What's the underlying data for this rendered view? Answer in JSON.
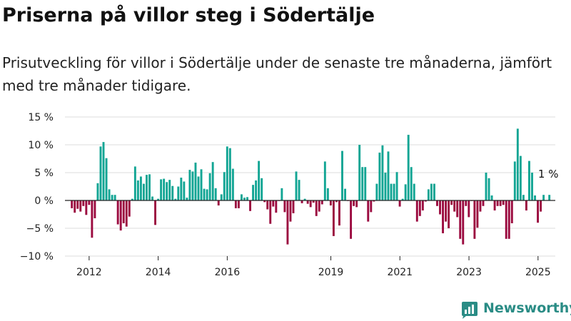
{
  "title": "Priserna på villor steg i Södertälje",
  "subtitle": "Prisutveckling för villor i Södertälje under de senaste tre månaderna, jämfört med tre månader tidigare.",
  "colors": {
    "positive": "#12a594",
    "negative": "#9b0a3f",
    "grid": "#dddddd",
    "axis": "#222222",
    "brand": "#2a8c85"
  },
  "brand": {
    "name": "Newsworthy",
    "icon": "newsworthy-logo-icon"
  },
  "chart_data": {
    "type": "bar",
    "title": "Priserna på villor steg i Södertälje",
    "xlabel": "",
    "ylabel": "",
    "ylim": [
      -10,
      15
    ],
    "yticks": [
      15,
      10,
      5,
      0,
      -5,
      -10
    ],
    "ytick_labels": [
      "15 %",
      "10 %",
      "5 %",
      "0 %",
      "−5 %",
      "−10 %"
    ],
    "xlim": [
      2011.3,
      2025.5
    ],
    "xticks": [
      2012,
      2014,
      2016,
      2019,
      2021,
      2023,
      2025
    ],
    "xtick_labels": [
      "2012",
      "2014",
      "2016",
      "2019",
      "2021",
      "2023",
      "2025"
    ],
    "grid": true,
    "legend": "none",
    "annotation": {
      "label": "1 %",
      "x": 2025.25,
      "y": 1
    },
    "start_year": 2011.5,
    "period_step": 0.0833,
    "values": [
      -1.4,
      -2.2,
      -1.5,
      -2.0,
      -1.0,
      -2.6,
      -0.8,
      -6.7,
      -3.2,
      3.1,
      9.7,
      10.5,
      7.6,
      2.0,
      1.0,
      1.0,
      -4.3,
      -5.4,
      -4.1,
      -4.7,
      -2.9,
      0.3,
      6.1,
      3.6,
      4.3,
      3.0,
      4.6,
      4.7,
      0.7,
      -4.4,
      0.3,
      3.8,
      3.9,
      3.3,
      3.7,
      2.6,
      0.3,
      2.5,
      4.1,
      3.4,
      0.5,
      5.5,
      5.2,
      6.8,
      4.3,
      5.6,
      2.1,
      2.0,
      4.9,
      6.9,
      2.2,
      -0.9,
      1.1,
      5.1,
      9.7,
      9.4,
      5.7,
      -1.4,
      -1.4,
      1.1,
      0.5,
      0.6,
      -1.9,
      2.8,
      3.6,
      7.1,
      4.0,
      -0.3,
      -1.6,
      -4.2,
      -1.1,
      -2.2,
      -0.1,
      2.2,
      -2.1,
      -7.9,
      -3.8,
      -2.3,
      5.2,
      3.7,
      -0.5,
      0.3,
      -0.6,
      -1.2,
      -0.4,
      -2.8,
      -2.0,
      -0.7,
      7.0,
      2.2,
      -0.9,
      -6.4,
      -0.3,
      -4.5,
      8.9,
      2.1,
      -0.1,
      -6.9,
      -1.0,
      -1.2,
      10.0,
      6.0,
      6.0,
      -3.8,
      -2.1,
      -0.2,
      3.0,
      8.6,
      9.9,
      5.0,
      8.8,
      3.0,
      3.0,
      5.1,
      -1.1,
      0.3,
      2.9,
      11.8,
      6.0,
      3.0,
      -3.8,
      -2.8,
      -1.8,
      -0.2,
      2.0,
      3.0,
      3.0,
      -1.0,
      -2.5,
      -5.9,
      -3.8,
      -5.0,
      -0.8,
      -2.0,
      -3.0,
      -6.9,
      -7.9,
      -1.0,
      -3.0,
      -0.1,
      -6.9,
      -4.9,
      -2.0,
      -1.0,
      5.0,
      4.0,
      0.9,
      -1.8,
      -1.0,
      -1.0,
      -0.8,
      -6.9,
      -6.9,
      -4.1,
      7.0,
      12.9,
      8.0,
      1.0,
      -1.8,
      7.1,
      5.0,
      0.9,
      -4.0,
      -2.0,
      1.0,
      0.0,
      1.0
    ]
  }
}
